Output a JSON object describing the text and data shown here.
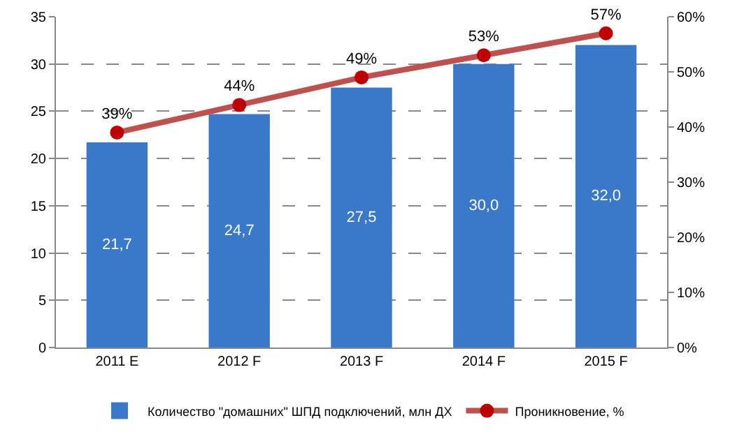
{
  "chart_data": {
    "type": "bar",
    "categories": [
      "2011 E",
      "2012 F",
      "2013 F",
      "2014 F",
      "2015 F"
    ],
    "series": [
      {
        "name": "Количество \"домашних\" ШПД подключений, млн ДХ",
        "color": "#3a78c9",
        "values": [
          21.7,
          24.7,
          27.5,
          30.0,
          32.0
        ],
        "value_labels": [
          "21,7",
          "24,7",
          "27,5",
          "30,0",
          "32,0"
        ]
      },
      {
        "name": "Проникновение, %",
        "type": "line",
        "axis": "y2",
        "color": "#c0504d",
        "values": [
          39,
          44,
          49,
          53,
          57
        ],
        "value_labels": [
          "39%",
          "44%",
          "49%",
          "53%",
          "57%"
        ]
      }
    ],
    "ylim": [
      0,
      35
    ],
    "yticks": [
      0,
      5,
      10,
      15,
      20,
      25,
      30,
      35
    ],
    "y2lim": [
      0,
      60
    ],
    "y2ticks": [
      {
        "value": 0,
        "label": "0%"
      },
      {
        "value": 10,
        "label": "10%"
      },
      {
        "value": 20,
        "label": "20%"
      },
      {
        "value": 30,
        "label": "30%"
      },
      {
        "value": 40,
        "label": "40%"
      },
      {
        "value": 50,
        "label": "50%"
      },
      {
        "value": 60,
        "label": "60%"
      }
    ],
    "grid": "y",
    "legend": "bottom",
    "marker": "circle",
    "line_style": "solid"
  }
}
